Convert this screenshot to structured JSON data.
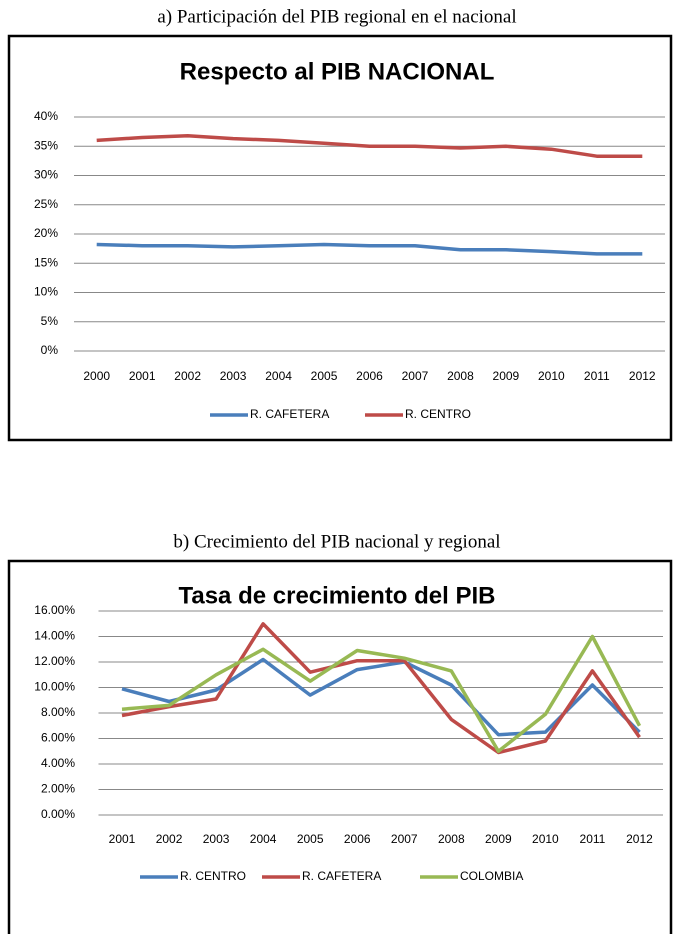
{
  "chart_data": [
    {
      "type": "line",
      "caption": "a) Participación del PIB regional en el nacional",
      "title": "Respecto al PIB NACIONAL",
      "categories": [
        "2000",
        "2001",
        "2002",
        "2003",
        "2004",
        "2005",
        "2006",
        "2007",
        "2008",
        "2009",
        "2010",
        "2011",
        "2012"
      ],
      "series": [
        {
          "name": "R. CAFETERA",
          "color": "#4a7ebb",
          "values": [
            18.2,
            18.0,
            18.0,
            17.8,
            18.0,
            18.2,
            18.0,
            18.0,
            17.3,
            17.3,
            17.0,
            16.6,
            16.6
          ]
        },
        {
          "name": "R. CENTRO",
          "color": "#be4b48",
          "values": [
            36.0,
            36.5,
            36.8,
            36.3,
            36.0,
            35.5,
            35.0,
            35.0,
            34.7,
            35.0,
            34.5,
            33.3,
            33.3
          ]
        }
      ],
      "ylim": [
        0,
        40
      ],
      "yticks": [
        {
          "value": 0,
          "label": "0%"
        },
        {
          "value": 5,
          "label": "5%"
        },
        {
          "value": 10,
          "label": "10%"
        },
        {
          "value": 15,
          "label": "15%"
        },
        {
          "value": 20,
          "label": "20%"
        },
        {
          "value": 25,
          "label": "25%"
        },
        {
          "value": 30,
          "label": "30%"
        },
        {
          "value": 35,
          "label": "35%"
        },
        {
          "value": 40,
          "label": "40%"
        }
      ],
      "grid": true,
      "legend": "bottom"
    },
    {
      "type": "line",
      "caption": "b) Crecimiento del PIB nacional y regional",
      "title": "Tasa de crecimiento del PIB",
      "categories": [
        "2001",
        "2002",
        "2003",
        "2004",
        "2005",
        "2006",
        "2007",
        "2008",
        "2009",
        "2010",
        "2011",
        "2012"
      ],
      "series": [
        {
          "name": "R. CENTRO",
          "color": "#4a7ebb",
          "values": [
            9.9,
            8.9,
            9.8,
            12.2,
            9.4,
            11.4,
            12.0,
            10.2,
            6.3,
            6.5,
            10.2,
            6.5
          ]
        },
        {
          "name": "R. CAFETERA",
          "color": "#be4b48",
          "values": [
            7.8,
            8.5,
            9.1,
            15.0,
            11.2,
            12.1,
            12.1,
            7.5,
            4.9,
            5.8,
            11.3,
            6.1
          ]
        },
        {
          "name": "COLOMBIA",
          "color": "#98b954",
          "values": [
            8.3,
            8.6,
            11.0,
            13.0,
            10.5,
            12.9,
            12.3,
            11.3,
            5.0,
            7.9,
            14.0,
            7.0
          ]
        }
      ],
      "ylim": [
        0,
        16
      ],
      "yticks": [
        {
          "value": 0,
          "label": "0.00%"
        },
        {
          "value": 2,
          "label": "2.00%"
        },
        {
          "value": 4,
          "label": "4.00%"
        },
        {
          "value": 6,
          "label": "6.00%"
        },
        {
          "value": 8,
          "label": "8.00%"
        },
        {
          "value": 10,
          "label": "10.00%"
        },
        {
          "value": 12,
          "label": "12.00%"
        },
        {
          "value": 14,
          "label": "14.00%"
        },
        {
          "value": 16,
          "label": "16.00%"
        }
      ],
      "grid": true,
      "legend": "bottom"
    }
  ]
}
